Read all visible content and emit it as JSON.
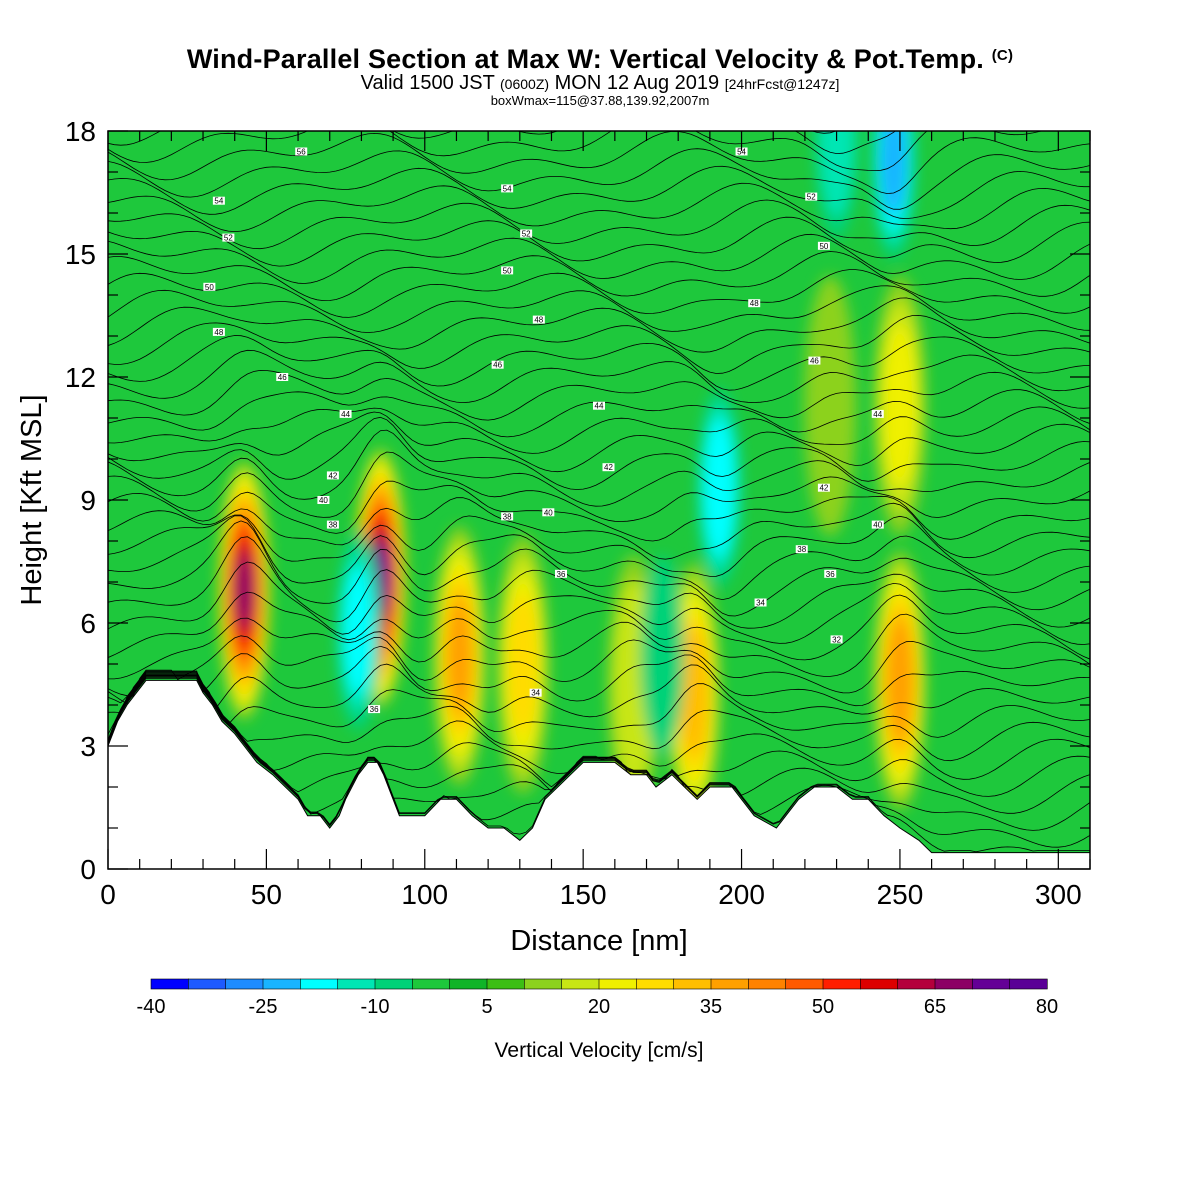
{
  "title": {
    "main": "Wind-Parallel Section at Max W: Vertical Velocity & Pot.Temp.",
    "copyright": "(C)",
    "valid_prefix": "Valid 1500 JST",
    "valid_zulu": "(0600Z)",
    "valid_date": "MON 12 Aug 2019",
    "forecast": "[24hrFcst@1247z]",
    "boxinfo": "boxWmax=115@37.88,139.92,2007m"
  },
  "chart_data": {
    "type": "heatmap",
    "xlabel": "Distance [nm]",
    "ylabel": "Height [Kft MSL]",
    "xlim": [
      0,
      310
    ],
    "ylim": [
      0,
      18
    ],
    "xticks": [
      "0",
      "50",
      "100",
      "150",
      "200",
      "250",
      "300"
    ],
    "yticks": [
      "0",
      "3",
      "6",
      "9",
      "12",
      "15",
      "18"
    ],
    "colorbar": {
      "label": "Vertical Velocity [cm/s]",
      "range": [
        -40,
        80
      ],
      "step": 5,
      "tick_labels": [
        "-40",
        "-25",
        "-10",
        "5",
        "20",
        "35",
        "50",
        "65",
        "80"
      ],
      "colors": [
        "#0000ff",
        "#1e5aff",
        "#1e8cff",
        "#19b4ff",
        "#00ffff",
        "#00e6b4",
        "#00d278",
        "#1ec83c",
        "#10b428",
        "#3cbe14",
        "#8cd21e",
        "#c8e614",
        "#f0f000",
        "#ffdc00",
        "#ffbe00",
        "#ffa000",
        "#ff8200",
        "#ff5a00",
        "#ff1e00",
        "#dc0000",
        "#b4003c",
        "#8c0064",
        "#640096",
        "#5a0096"
      ]
    },
    "vertical_velocity_cells": [
      {
        "x": 43,
        "h": 6.8,
        "w": 65
      },
      {
        "x": 86,
        "h": 7.1,
        "w": 70
      },
      {
        "x": 111,
        "h": 5.2,
        "w": 35
      },
      {
        "x": 131,
        "h": 5.0,
        "w": 25
      },
      {
        "x": 185,
        "h": 4.3,
        "w": 32
      },
      {
        "x": 250,
        "h": 4.6,
        "w": 38
      },
      {
        "x": 250,
        "h": 11.3,
        "w": 20
      },
      {
        "x": 228,
        "h": 11.3,
        "w": 14
      },
      {
        "x": 166,
        "h": 4.5,
        "w": 18
      },
      {
        "x": 79,
        "h": 5.8,
        "w": -20
      },
      {
        "x": 193,
        "h": 9.3,
        "w": -24
      },
      {
        "x": 175,
        "h": 5.2,
        "w": -14
      },
      {
        "x": 248,
        "h": 17.3,
        "w": -26
      },
      {
        "x": 230,
        "h": 17.8,
        "w": -15
      }
    ],
    "theta_labels": [
      {
        "x": 61,
        "h": 17.5,
        "text": "56"
      },
      {
        "x": 35,
        "h": 16.3,
        "text": "54"
      },
      {
        "x": 38,
        "h": 15.4,
        "text": "52"
      },
      {
        "x": 32,
        "h": 14.2,
        "text": "50"
      },
      {
        "x": 35,
        "h": 13.1,
        "text": "48"
      },
      {
        "x": 55,
        "h": 12.0,
        "text": "46"
      },
      {
        "x": 75,
        "h": 11.1,
        "text": "44"
      },
      {
        "x": 71,
        "h": 9.6,
        "text": "42"
      },
      {
        "x": 68,
        "h": 9.0,
        "text": "40"
      },
      {
        "x": 71,
        "h": 8.4,
        "text": "38"
      },
      {
        "x": 84,
        "h": 3.9,
        "text": "36"
      },
      {
        "x": 126,
        "h": 16.6,
        "text": "54"
      },
      {
        "x": 132,
        "h": 15.5,
        "text": "52"
      },
      {
        "x": 126,
        "h": 14.6,
        "text": "50"
      },
      {
        "x": 136,
        "h": 13.4,
        "text": "48"
      },
      {
        "x": 123,
        "h": 12.3,
        "text": "46"
      },
      {
        "x": 155,
        "h": 11.3,
        "text": "44"
      },
      {
        "x": 158,
        "h": 9.8,
        "text": "42"
      },
      {
        "x": 139,
        "h": 8.7,
        "text": "40"
      },
      {
        "x": 126,
        "h": 8.6,
        "text": "38"
      },
      {
        "x": 143,
        "h": 7.2,
        "text": "36"
      },
      {
        "x": 135,
        "h": 4.3,
        "text": "34"
      },
      {
        "x": 200,
        "h": 17.5,
        "text": "54"
      },
      {
        "x": 222,
        "h": 16.4,
        "text": "52"
      },
      {
        "x": 226,
        "h": 15.2,
        "text": "50"
      },
      {
        "x": 204,
        "h": 13.8,
        "text": "48"
      },
      {
        "x": 223,
        "h": 12.4,
        "text": "46"
      },
      {
        "x": 243,
        "h": 11.1,
        "text": "44"
      },
      {
        "x": 226,
        "h": 9.3,
        "text": "42"
      },
      {
        "x": 243,
        "h": 8.4,
        "text": "40"
      },
      {
        "x": 219,
        "h": 7.8,
        "text": "38"
      },
      {
        "x": 228,
        "h": 7.2,
        "text": "36"
      },
      {
        "x": 206,
        "h": 6.5,
        "text": "34"
      },
      {
        "x": 230,
        "h": 5.6,
        "text": "32"
      }
    ],
    "terrain_height": [
      [
        0,
        3.0
      ],
      [
        3,
        3.6
      ],
      [
        6,
        4.0
      ],
      [
        9,
        4.3
      ],
      [
        12,
        4.6
      ],
      [
        28,
        4.6
      ],
      [
        30,
        4.3
      ],
      [
        33,
        4.0
      ],
      [
        36,
        3.6
      ],
      [
        40,
        3.3
      ],
      [
        43,
        3.0
      ],
      [
        47,
        2.6
      ],
      [
        52,
        2.3
      ],
      [
        56,
        2.0
      ],
      [
        60,
        1.7
      ],
      [
        63,
        1.3
      ],
      [
        67,
        1.3
      ],
      [
        70,
        1.0
      ],
      [
        73,
        1.3
      ],
      [
        75,
        1.7
      ],
      [
        79,
        2.3
      ],
      [
        82,
        2.6
      ],
      [
        85,
        2.6
      ],
      [
        87,
        2.3
      ],
      [
        90,
        1.7
      ],
      [
        92,
        1.3
      ],
      [
        100,
        1.3
      ],
      [
        105,
        1.7
      ],
      [
        110,
        1.7
      ],
      [
        115,
        1.3
      ],
      [
        120,
        1.0
      ],
      [
        125,
        1.0
      ],
      [
        130,
        0.7
      ],
      [
        134,
        1.0
      ],
      [
        138,
        1.7
      ],
      [
        142,
        2.0
      ],
      [
        146,
        2.3
      ],
      [
        150,
        2.6
      ],
      [
        160,
        2.6
      ],
      [
        165,
        2.3
      ],
      [
        170,
        2.3
      ],
      [
        173,
        2.0
      ],
      [
        178,
        2.3
      ],
      [
        182,
        2.0
      ],
      [
        186,
        1.7
      ],
      [
        190,
        2.0
      ],
      [
        197,
        2.0
      ],
      [
        200,
        1.7
      ],
      [
        204,
        1.3
      ],
      [
        211,
        1.0
      ],
      [
        214,
        1.3
      ],
      [
        218,
        1.7
      ],
      [
        223,
        2.0
      ],
      [
        230,
        2.0
      ],
      [
        235,
        1.7
      ],
      [
        240,
        1.7
      ],
      [
        245,
        1.3
      ],
      [
        250,
        1.0
      ],
      [
        256,
        0.7
      ],
      [
        260,
        0.4
      ],
      [
        310,
        0.4
      ]
    ]
  }
}
